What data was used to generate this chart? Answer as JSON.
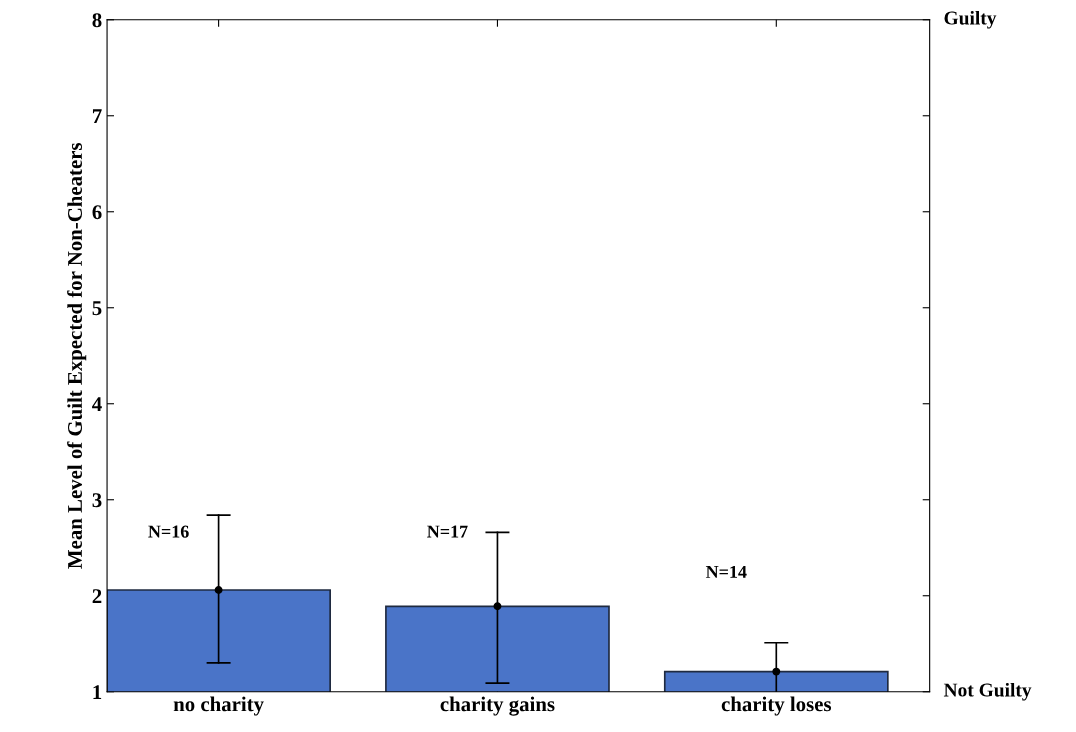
{
  "chart_data": {
    "type": "bar",
    "ylabel": "Mean Level of Guilt Expected for Non-Cheaters",
    "categories": [
      "no charity",
      "charity gains",
      "charity loses"
    ],
    "series": [
      {
        "color": "#4a74c8",
        "values": [
          2.06,
          1.89,
          1.21
        ],
        "errors": [
          [
            1.3,
            2.84
          ],
          [
            1.09,
            2.66
          ],
          [
            1.0,
            1.51
          ]
        ]
      },
      {
        "type": "scatter",
        "color": "#000000",
        "x": [
          "no charity",
          "charity gains",
          "charity loses"
        ],
        "values": [
          2.06,
          1.89,
          1.21
        ]
      }
    ],
    "marker": "circle",
    "ylim": [
      1,
      8
    ],
    "yticks": [
      1,
      2,
      3,
      4,
      5,
      6,
      7,
      8
    ],
    "grid": false,
    "annotations": [
      "N=16",
      "N=17",
      "N=14",
      "Guilty",
      "Not Guilty"
    ]
  }
}
